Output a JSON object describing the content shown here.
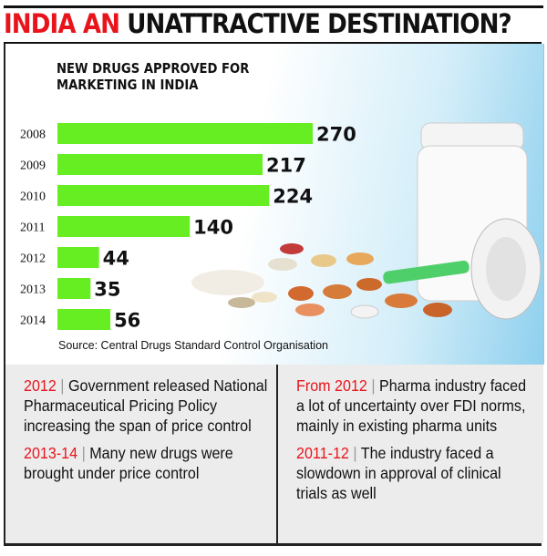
{
  "headline": {
    "red": "INDIA AN",
    "black": "UNATTRACTIVE DESTINATION?"
  },
  "chart_data": {
    "type": "bar",
    "orientation": "horizontal",
    "title": "NEW DRUGS APPROVED FOR MARKETING IN INDIA",
    "categories": [
      "2008",
      "2009",
      "2010",
      "2011",
      "2012",
      "2013",
      "2014"
    ],
    "values": [
      270,
      217,
      224,
      140,
      44,
      35,
      56
    ],
    "bar_color": "#66ee22",
    "source": "Source: Central Drugs Standard Control Organisation"
  },
  "notes": {
    "left": [
      {
        "year": "2012",
        "text": "Government released National  Pharmaceutical Pricing Policy increasing the span of price control"
      },
      {
        "year": "2013-14",
        "text": "Many new drugs were brought under price control"
      }
    ],
    "right": [
      {
        "year": "From 2012",
        "text": "Pharma industry faced a lot of uncertainty over FDI norms, mainly in existing pharma units"
      },
      {
        "year": "2011-12",
        "text": "The industry faced a slowdown in approval of clinical trials as well"
      }
    ]
  }
}
